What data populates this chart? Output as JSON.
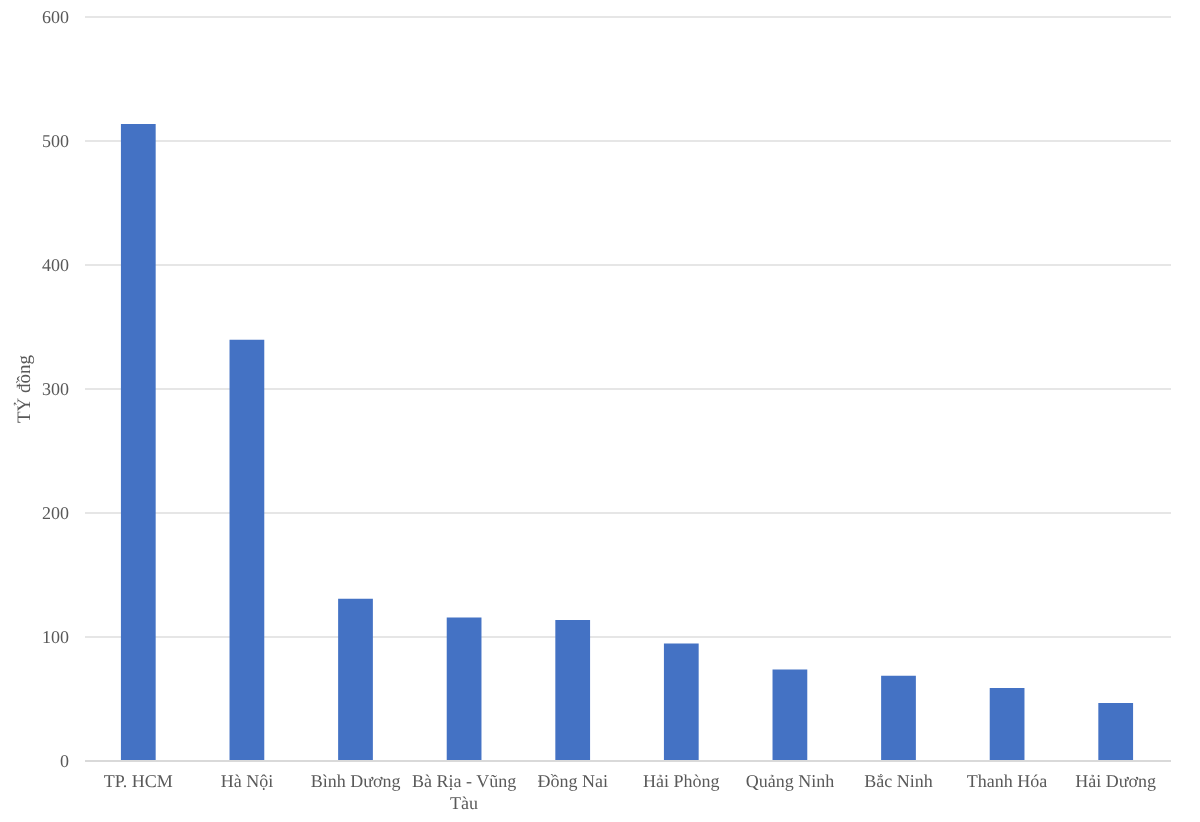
{
  "chart_data": {
    "type": "bar",
    "ylabel": "TỶ đồng",
    "categories": [
      "TP. HCM",
      "Hà Nội",
      "Bình Dương",
      "Bà Rịa - Vũng Tàu",
      "Đồng Nai",
      "Hải Phòng",
      "Quảng Ninh",
      "Bắc Ninh",
      "Thanh Hóa",
      "Hải Dương"
    ],
    "values": [
      513,
      339,
      130,
      115,
      113,
      94,
      73,
      68,
      58,
      46
    ],
    "color": "#4472c4",
    "ylim": [
      0,
      600
    ],
    "yticks": [
      0,
      100,
      200,
      300,
      400,
      500,
      600
    ],
    "grid": "y"
  }
}
